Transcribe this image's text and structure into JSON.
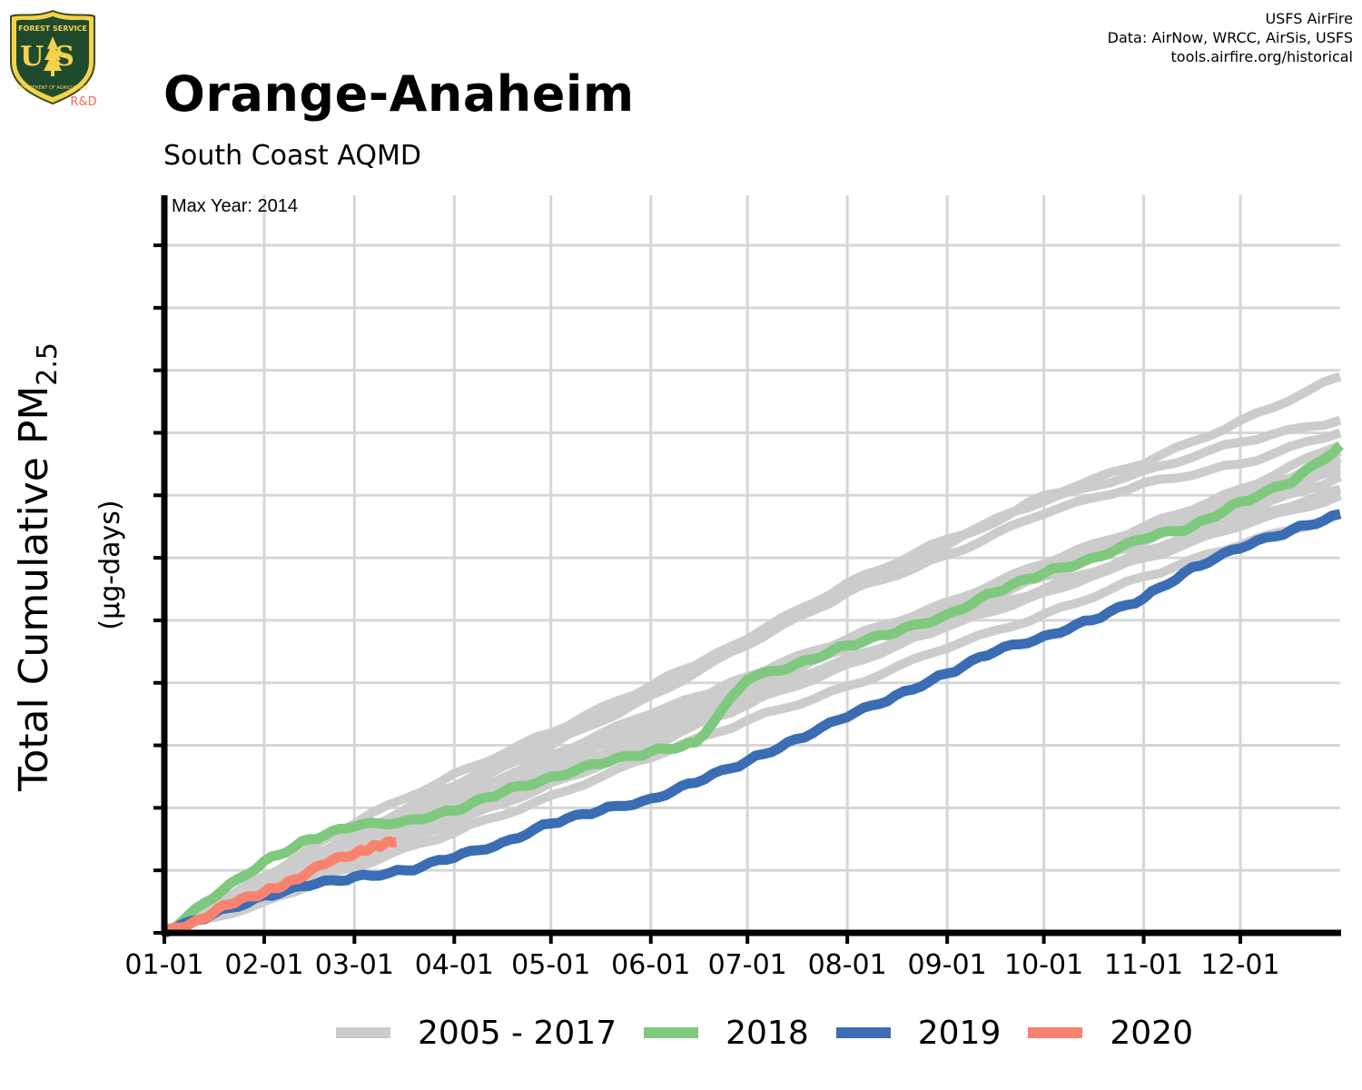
{
  "header": {
    "title": "Orange-Anaheim",
    "subtitle": "South Coast AQMD",
    "credits": [
      "USFS AirFire",
      "Data: AirNow, WRCC, AirSis, USFS",
      "tools.airfire.org/historical"
    ]
  },
  "logo": {
    "icon": "usfs-shield-icon",
    "arc_text": "FOREST SERVICE",
    "initials": "US",
    "bottom_text": "DEPARTMENT OF AGRICULTURE",
    "tag": "R&D"
  },
  "chart_data": {
    "type": "line",
    "title": "Orange-Anaheim",
    "subtitle": "South Coast AQMD",
    "ylabel": "Total Cumulative PM2.5",
    "ylabel_main": "Total Cumulative PM",
    "ylabel_sub": "2.5",
    "ylabel_units": "(µg-days)",
    "annotation": "Max Year: 2014",
    "x_tick_labels": [
      "01-01",
      "02-01",
      "03-01",
      "04-01",
      "05-01",
      "06-01",
      "07-01",
      "08-01",
      "09-01",
      "10-01",
      "11-01",
      "12-01"
    ],
    "x_tick_days": [
      0,
      31,
      59,
      90,
      120,
      151,
      181,
      212,
      243,
      273,
      304,
      334
    ],
    "xlim": [
      0,
      365
    ],
    "ylim": [
      0,
      118
    ],
    "y_ticks": [
      0,
      10,
      20,
      30,
      40,
      50,
      60,
      70,
      80,
      90,
      100,
      110
    ],
    "y_tick_labels_shown": false,
    "grid": true,
    "legend_position": "bottom",
    "legend": [
      {
        "label": "2005 - 2017",
        "color": "#cccccc"
      },
      {
        "label": "2018",
        "color": "#7ec97e"
      },
      {
        "label": "2019",
        "color": "#3b6db5"
      },
      {
        "label": "2020",
        "color": "#f9826f"
      }
    ],
    "series": [
      {
        "group": "2005 - 2017",
        "color": "#cccccc",
        "x": [
          0,
          31,
          59,
          90,
          120,
          151,
          181,
          212,
          243,
          273,
          304,
          334,
          365
        ],
        "y": [
          0,
          9.0,
          17.5,
          25.5,
          32,
          39.5,
          47,
          55,
          62,
          70,
          75,
          82,
          89
        ]
      },
      {
        "group": "2005 - 2017",
        "color": "#cccccc",
        "x": [
          0,
          31,
          59,
          90,
          120,
          151,
          181,
          212,
          243,
          273,
          304,
          334,
          365
        ],
        "y": [
          0,
          8.0,
          15.5,
          21,
          28,
          34,
          41,
          47,
          53,
          59,
          65,
          71,
          78
        ]
      },
      {
        "group": "2005 - 2017",
        "color": "#cccccc",
        "x": [
          0,
          31,
          59,
          90,
          120,
          151,
          181,
          212,
          243,
          273,
          304,
          334,
          365
        ],
        "y": [
          0,
          6.5,
          13,
          19.5,
          25.5,
          32,
          38,
          44,
          49.5,
          55,
          61,
          67,
          73
        ]
      },
      {
        "group": "2005 - 2017",
        "color": "#cccccc",
        "x": [
          0,
          31,
          59,
          90,
          120,
          151,
          181,
          212,
          243,
          273,
          304,
          334,
          365
        ],
        "y": [
          0,
          7.5,
          15,
          21.5,
          28.5,
          35,
          40.5,
          46,
          52,
          58,
          64,
          70,
          76
        ]
      },
      {
        "group": "2005 - 2017",
        "color": "#cccccc",
        "x": [
          0,
          31,
          59,
          90,
          120,
          151,
          181,
          212,
          243,
          273,
          304,
          334,
          365
        ],
        "y": [
          0,
          7,
          14,
          20.5,
          27,
          33,
          39.5,
          45.5,
          51,
          57,
          62.5,
          68.5,
          74
        ]
      },
      {
        "group": "2005 - 2017",
        "color": "#cccccc",
        "x": [
          0,
          31,
          59,
          90,
          120,
          151,
          181,
          212,
          243,
          273,
          304,
          334,
          365
        ],
        "y": [
          0,
          8.5,
          16,
          22.5,
          30,
          38,
          46,
          54.5,
          60.5,
          67,
          72,
          75,
          80
        ]
      },
      {
        "group": "2005 - 2017",
        "color": "#cccccc",
        "x": [
          0,
          31,
          59,
          90,
          120,
          151,
          181,
          212,
          243,
          273,
          304,
          334,
          365
        ],
        "y": [
          0,
          5.5,
          11.5,
          17.5,
          24,
          30,
          36.5,
          43,
          49,
          55,
          60,
          65,
          70
        ]
      },
      {
        "group": "2005 - 2017",
        "color": "#cccccc",
        "x": [
          0,
          31,
          59,
          90,
          120,
          151,
          181,
          212,
          243,
          273,
          304,
          334,
          365
        ],
        "y": [
          0,
          6,
          12.5,
          19,
          25,
          31,
          37.5,
          43.5,
          49,
          54.5,
          60,
          66,
          71
        ]
      },
      {
        "group": "2005 - 2017",
        "color": "#cccccc",
        "x": [
          0,
          31,
          59,
          90,
          120,
          151,
          181,
          212,
          243,
          273,
          304,
          334,
          365
        ],
        "y": [
          0,
          7,
          14.5,
          21,
          27.5,
          34,
          40,
          46,
          52.5,
          58.5,
          64.5,
          70.5,
          75
        ]
      },
      {
        "group": "2005 - 2017",
        "color": "#cccccc",
        "x": [
          0,
          31,
          59,
          90,
          120,
          151,
          181,
          212,
          243,
          273,
          304,
          334,
          365
        ],
        "y": [
          0,
          8,
          16,
          23.5,
          31.5,
          39,
          47,
          56,
          63,
          69,
          74,
          78.5,
          82
        ]
      },
      {
        "group": "2005 - 2017",
        "color": "#cccccc",
        "x": [
          0,
          31,
          59,
          90,
          120,
          151,
          181,
          212,
          243,
          273,
          304,
          334,
          365
        ],
        "y": [
          0,
          5,
          10.5,
          16,
          22,
          28,
          34,
          39.5,
          45.5,
          51,
          57,
          62,
          67
        ]
      },
      {
        "group": "2005 - 2017",
        "color": "#cccccc",
        "x": [
          0,
          31,
          59,
          90,
          120,
          151,
          181,
          212,
          243,
          273,
          304,
          334,
          365
        ],
        "y": [
          0,
          7.5,
          14,
          20,
          26.5,
          33,
          39,
          45.5,
          51.5,
          57.5,
          63,
          69,
          77
        ]
      },
      {
        "name": "2018",
        "color": "#7ec97e",
        "x": [
          0,
          15,
          31,
          45,
          59,
          75,
          90,
          105,
          120,
          135,
          151,
          165,
          181,
          196,
          212,
          227,
          243,
          258,
          273,
          288,
          304,
          319,
          334,
          350,
          365
        ],
        "y": [
          0,
          5.5,
          11.5,
          15,
          17,
          18,
          19.5,
          22.5,
          25,
          27,
          29,
          30.5,
          40.5,
          43,
          46,
          48,
          51,
          54.5,
          57.5,
          60,
          63,
          65,
          69,
          72,
          78
        ]
      },
      {
        "name": "2019",
        "color": "#3b6db5",
        "x": [
          0,
          15,
          31,
          45,
          59,
          75,
          90,
          105,
          120,
          135,
          151,
          165,
          181,
          196,
          212,
          227,
          243,
          258,
          273,
          288,
          304,
          319,
          334,
          350,
          365
        ],
        "y": [
          0,
          3,
          6,
          7.5,
          9,
          10,
          12,
          14.5,
          17.5,
          19.5,
          21.5,
          24,
          27.5,
          31,
          34.5,
          38,
          41.5,
          45,
          47.5,
          50,
          53.5,
          58.5,
          61.5,
          64.5,
          67
        ]
      },
      {
        "name": "2020",
        "color": "#f9826f",
        "x": [
          0,
          10,
          20,
          31,
          40,
          50,
          60,
          66,
          72
        ],
        "y": [
          0,
          2,
          4.5,
          6.5,
          8.5,
          11,
          13,
          14,
          14.5
        ]
      }
    ]
  }
}
